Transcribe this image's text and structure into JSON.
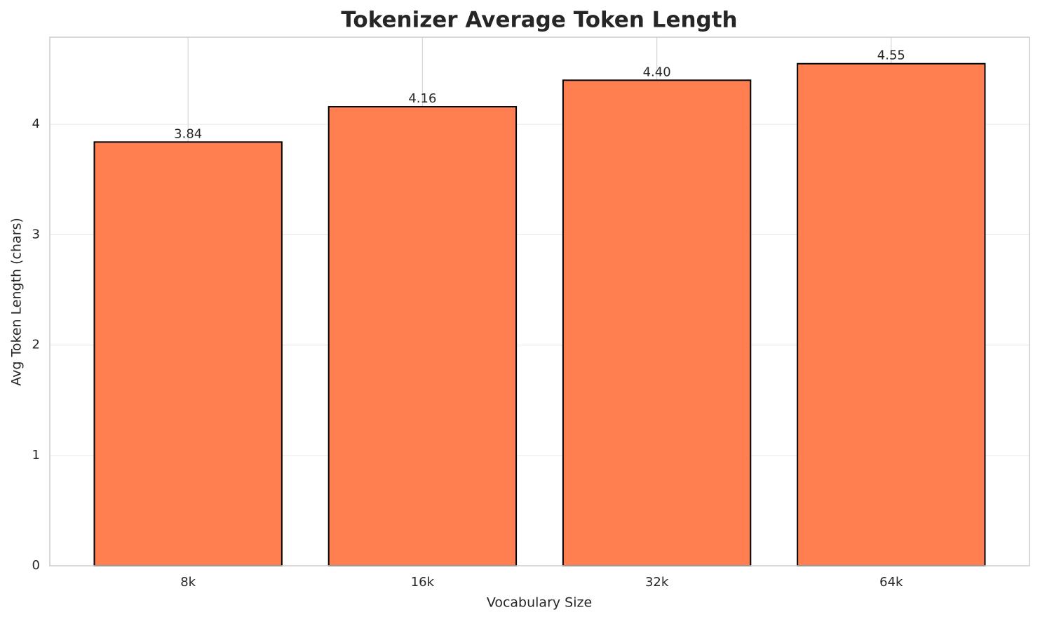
{
  "chart_data": {
    "type": "bar",
    "title": "Tokenizer Average Token Length",
    "x_label": "Vocabulary Size",
    "y_label": "Avg Token Length (chars)",
    "categories": [
      "8k",
      "16k",
      "32k",
      "64k"
    ],
    "values": [
      3.84,
      4.16,
      4.4,
      4.55
    ],
    "value_labels": [
      "3.84",
      "4.16",
      "4.40",
      "4.55"
    ],
    "color": "#ff7f50",
    "edge_color": "#000000",
    "ylim": [
      0,
      4.79
    ],
    "yticks": [
      0,
      1,
      2,
      3,
      4
    ],
    "grid": true
  }
}
